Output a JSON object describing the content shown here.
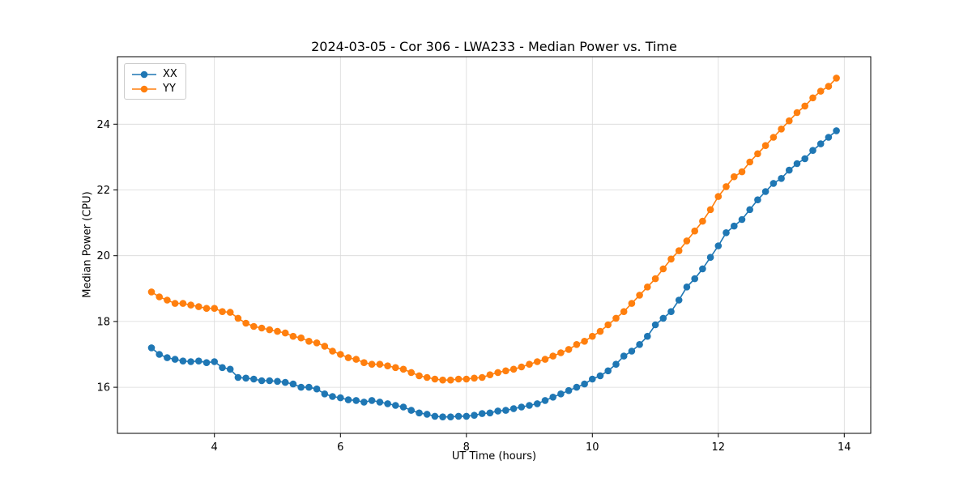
{
  "chart_data": {
    "type": "line",
    "title": "2024-03-05 - Cor 306 - LWA233 - Median Power vs. Time",
    "xlabel": "UT Time (hours)",
    "ylabel": "Median Power (CPU)",
    "xlim": [
      2.46,
      14.42
    ],
    "ylim": [
      14.6,
      26.05
    ],
    "x_ticks": [
      4,
      6,
      8,
      10,
      12,
      14
    ],
    "y_ticks": [
      16,
      18,
      20,
      22,
      24
    ],
    "grid": true,
    "legend_position": "upper left",
    "marker": "circle",
    "x": [
      3.0,
      3.125,
      3.25,
      3.375,
      3.5,
      3.625,
      3.75,
      3.875,
      4.0,
      4.125,
      4.25,
      4.375,
      4.5,
      4.625,
      4.75,
      4.875,
      5.0,
      5.125,
      5.25,
      5.375,
      5.5,
      5.625,
      5.75,
      5.875,
      6.0,
      6.125,
      6.25,
      6.375,
      6.5,
      6.625,
      6.75,
      6.875,
      7.0,
      7.125,
      7.25,
      7.375,
      7.5,
      7.625,
      7.75,
      7.875,
      8.0,
      8.125,
      8.25,
      8.375,
      8.5,
      8.625,
      8.75,
      8.875,
      9.0,
      9.125,
      9.25,
      9.375,
      9.5,
      9.625,
      9.75,
      9.875,
      10.0,
      10.125,
      10.25,
      10.375,
      10.5,
      10.625,
      10.75,
      10.875,
      11.0,
      11.125,
      11.25,
      11.375,
      11.5,
      11.625,
      11.75,
      11.875,
      12.0,
      12.125,
      12.25,
      12.375,
      12.5,
      12.625,
      12.75,
      12.875,
      13.0,
      13.125,
      13.25,
      13.375,
      13.5,
      13.625,
      13.75,
      13.875
    ],
    "series": [
      {
        "name": "XX",
        "color": "#1f77b4",
        "values": [
          17.2,
          17.0,
          16.9,
          16.85,
          16.8,
          16.78,
          16.8,
          16.75,
          16.78,
          16.6,
          16.55,
          16.3,
          16.28,
          16.25,
          16.2,
          16.2,
          16.18,
          16.15,
          16.1,
          16.0,
          16.0,
          15.95,
          15.8,
          15.72,
          15.68,
          15.62,
          15.6,
          15.55,
          15.6,
          15.55,
          15.5,
          15.45,
          15.4,
          15.3,
          15.22,
          15.18,
          15.12,
          15.1,
          15.1,
          15.12,
          15.12,
          15.15,
          15.2,
          15.22,
          15.28,
          15.3,
          15.35,
          15.4,
          15.45,
          15.5,
          15.6,
          15.7,
          15.8,
          15.9,
          16.0,
          16.1,
          16.25,
          16.35,
          16.5,
          16.7,
          16.95,
          17.1,
          17.3,
          17.55,
          17.9,
          18.1,
          18.3,
          18.65,
          19.05,
          19.3,
          19.6,
          19.95,
          20.3,
          20.7,
          20.9,
          21.1,
          21.4,
          21.7,
          21.95,
          22.2,
          22.35,
          22.6,
          22.8,
          22.95,
          23.2,
          23.4,
          23.6,
          23.8
        ]
      },
      {
        "name": "YY",
        "color": "#ff7f0e",
        "values": [
          18.9,
          18.75,
          18.65,
          18.55,
          18.55,
          18.5,
          18.45,
          18.4,
          18.4,
          18.3,
          18.28,
          18.1,
          17.95,
          17.85,
          17.8,
          17.75,
          17.7,
          17.65,
          17.55,
          17.5,
          17.4,
          17.35,
          17.25,
          17.1,
          17.0,
          16.9,
          16.85,
          16.75,
          16.7,
          16.7,
          16.65,
          16.6,
          16.55,
          16.45,
          16.35,
          16.3,
          16.25,
          16.22,
          16.22,
          16.25,
          16.25,
          16.28,
          16.3,
          16.38,
          16.45,
          16.5,
          16.55,
          16.62,
          16.7,
          16.78,
          16.85,
          16.95,
          17.05,
          17.15,
          17.3,
          17.4,
          17.55,
          17.7,
          17.9,
          18.1,
          18.3,
          18.55,
          18.8,
          19.05,
          19.3,
          19.6,
          19.9,
          20.15,
          20.45,
          20.75,
          21.05,
          21.4,
          21.8,
          22.1,
          22.4,
          22.55,
          22.85,
          23.1,
          23.35,
          23.6,
          23.85,
          24.1,
          24.35,
          24.55,
          24.8,
          25.0,
          25.15,
          25.4
        ]
      }
    ]
  }
}
